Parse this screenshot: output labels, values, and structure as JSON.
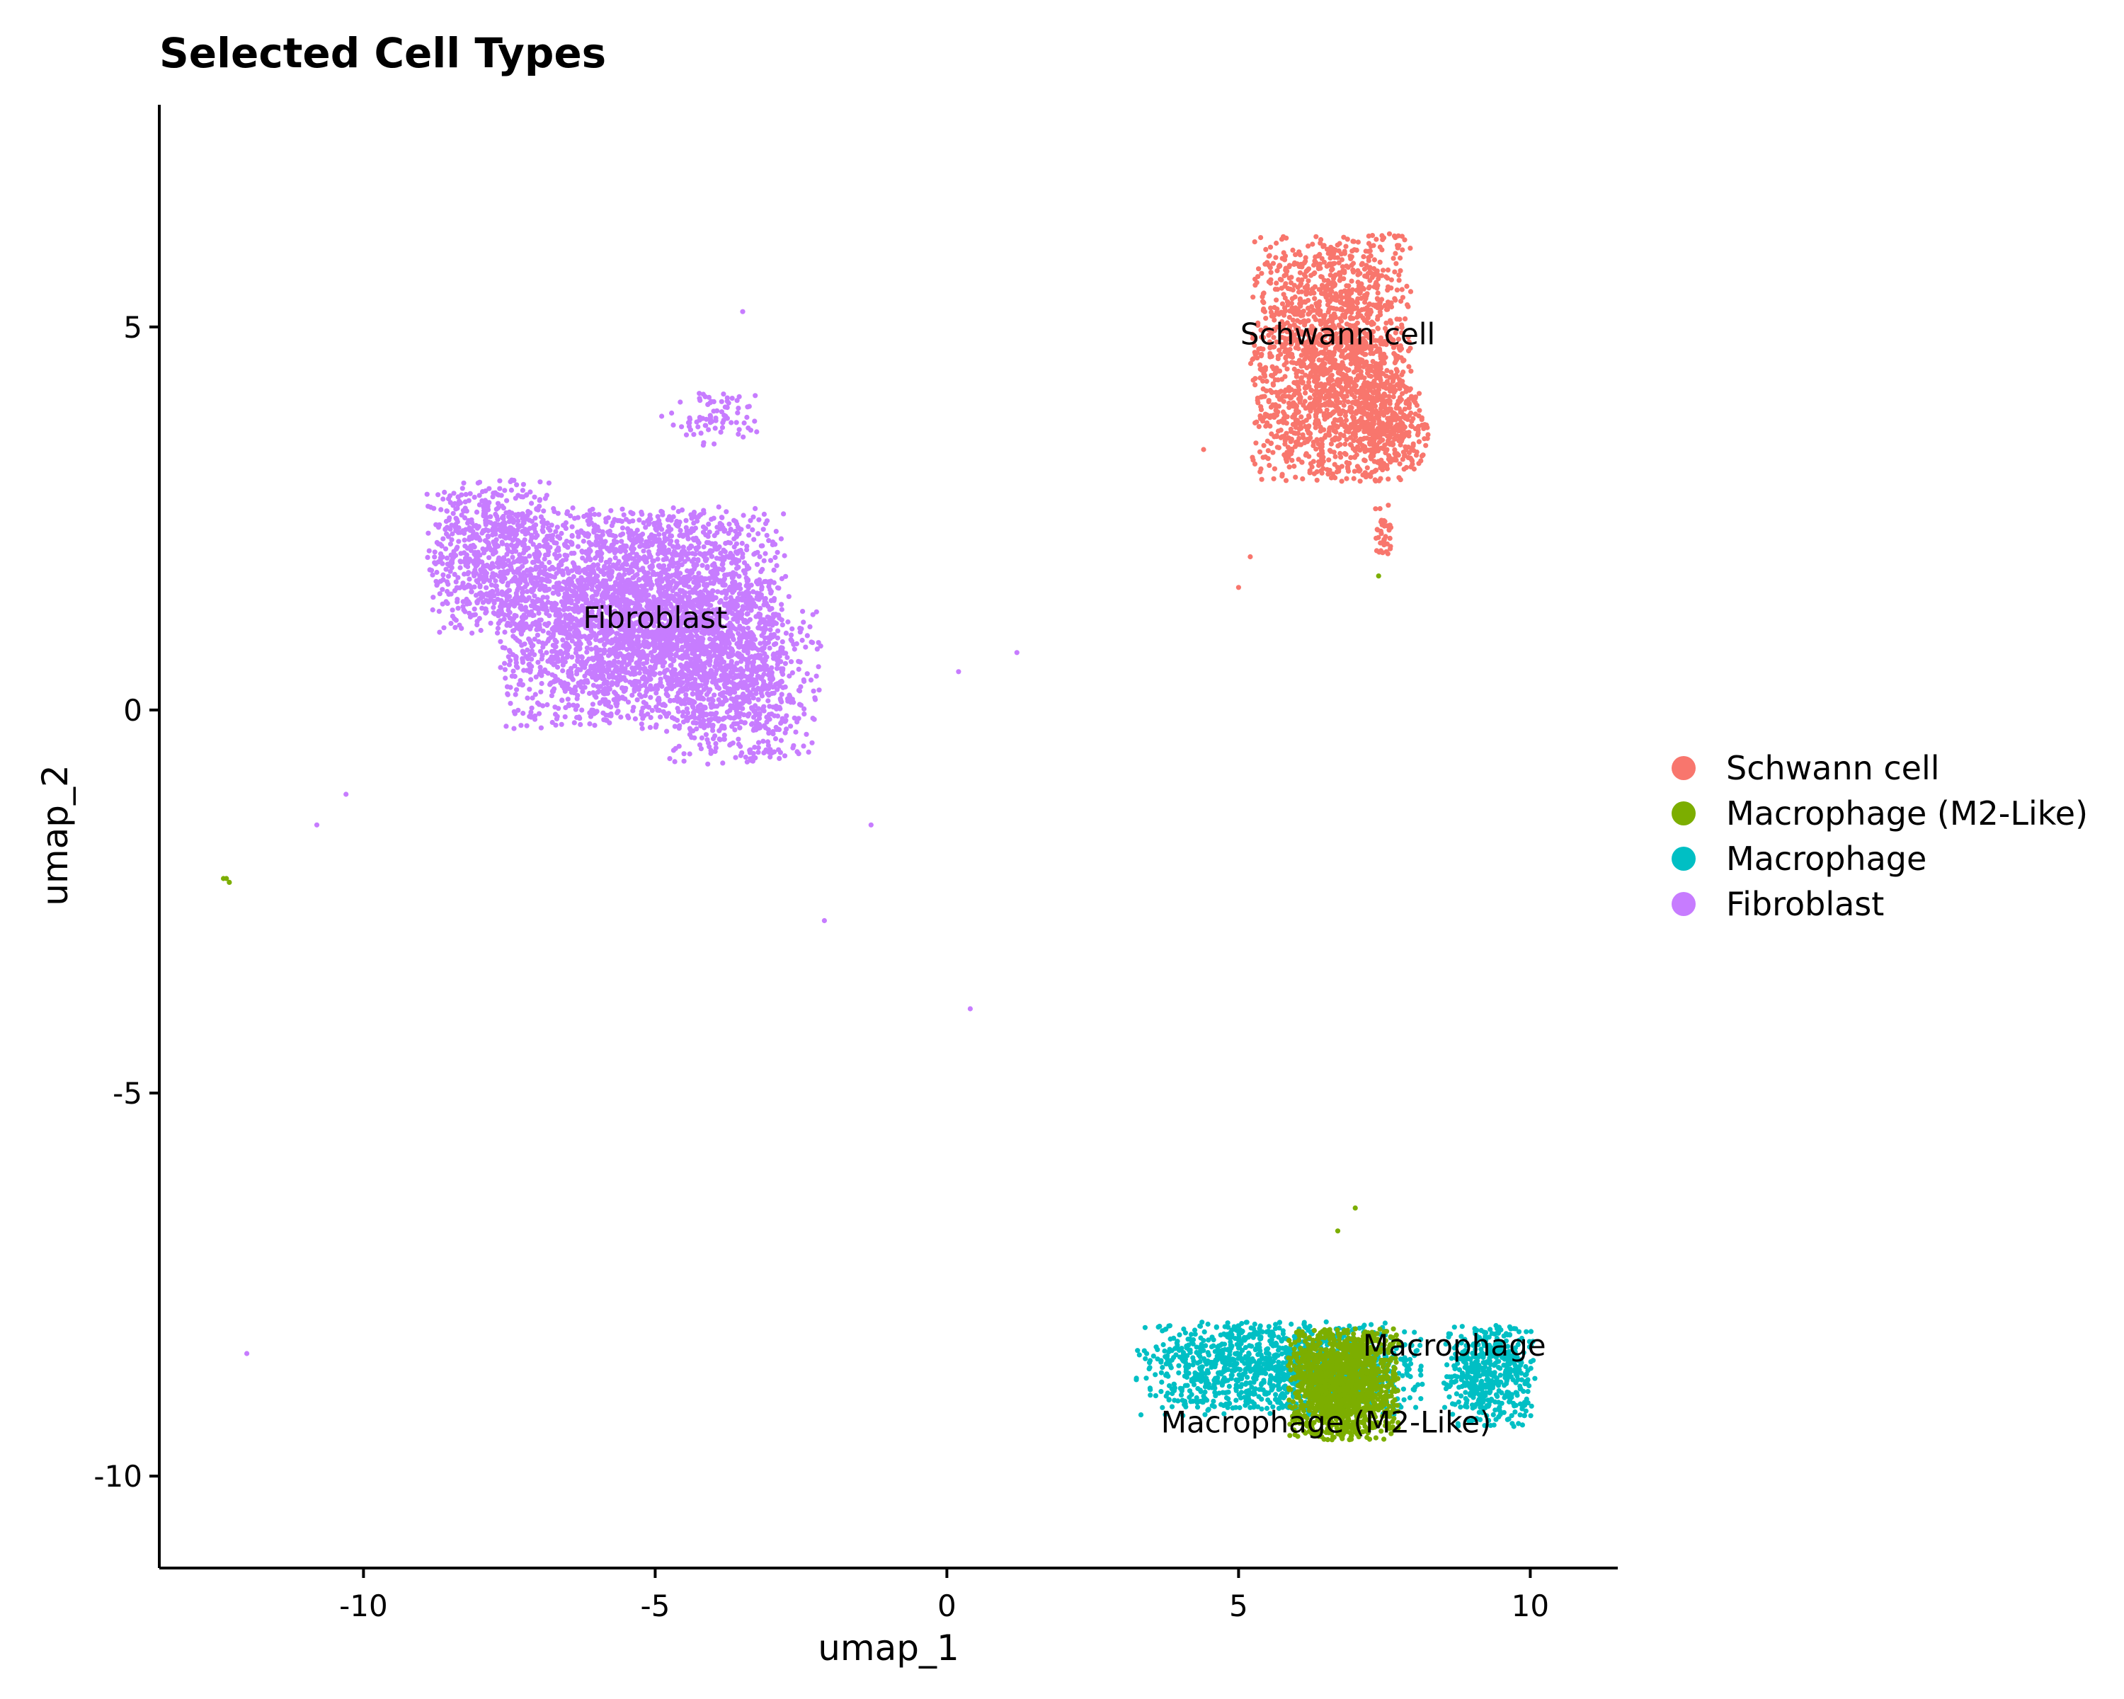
{
  "chart_data": {
    "type": "scatter",
    "title": "Selected Cell Types",
    "xlabel": "umap_1",
    "ylabel": "umap_2",
    "xlim": [
      -13.5,
      11.5
    ],
    "ylim": [
      -11.2,
      7.9
    ],
    "xticks": [
      -10,
      -5,
      0,
      5,
      10
    ],
    "yticks": [
      5,
      0,
      -5,
      -10
    ],
    "xtick_labels": [
      "-10",
      "-5",
      "0",
      "5",
      "10"
    ],
    "ytick_labels": [
      "5",
      "0",
      "-5",
      "-10"
    ],
    "grid": false,
    "legend_position": "right",
    "series": [
      {
        "name": "Schwann cell",
        "color": "#F8766D",
        "label": "Schwann cell",
        "label_at": [
          6.7,
          4.9
        ]
      },
      {
        "name": "Macrophage (M2-Like)",
        "color": "#7CAE00",
        "label": "Macrophage (M2-Like)",
        "label_at": [
          6.5,
          -9.3
        ]
      },
      {
        "name": "Macrophage",
        "color": "#00BFC4",
        "label": "Macrophage",
        "label_at": [
          8.7,
          -8.3
        ]
      },
      {
        "name": "Fibroblast",
        "color": "#C77CFF",
        "label": "Fibroblast",
        "label_at": [
          -5.0,
          1.2
        ]
      }
    ],
    "clusters": [
      {
        "series": 0,
        "center": [
          6.6,
          4.6
        ],
        "spread": [
          1.25,
          1.45
        ],
        "n": 1900
      },
      {
        "series": 0,
        "center": [
          7.6,
          3.7
        ],
        "spread": [
          0.6,
          0.5
        ],
        "n": 300
      },
      {
        "series": 0,
        "center": [
          7.5,
          2.3
        ],
        "spread": [
          0.15,
          0.4
        ],
        "n": 40
      },
      {
        "series": 3,
        "center": [
          -5.2,
          1.2
        ],
        "spread": [
          2.2,
          1.3
        ],
        "n": 3400
      },
      {
        "series": 3,
        "center": [
          -7.8,
          2.0
        ],
        "spread": [
          1.0,
          0.9
        ],
        "n": 700
      },
      {
        "series": 3,
        "center": [
          -3.5,
          0.4
        ],
        "spread": [
          1.2,
          1.0
        ],
        "n": 700
      },
      {
        "series": 3,
        "center": [
          -4.0,
          3.8
        ],
        "spread": [
          0.8,
          0.35
        ],
        "n": 80
      },
      {
        "series": 2,
        "center": [
          5.7,
          -8.6
        ],
        "spread": [
          2.2,
          0.55
        ],
        "n": 1300
      },
      {
        "series": 2,
        "center": [
          9.3,
          -8.7
        ],
        "spread": [
          0.7,
          0.6
        ],
        "n": 500
      },
      {
        "series": 1,
        "center": [
          6.8,
          -8.8
        ],
        "spread": [
          0.85,
          0.65
        ],
        "n": 1500
      }
    ],
    "outliers": [
      {
        "series": 3,
        "points": [
          [
            -3.5,
            5.2
          ],
          [
            -12.0,
            -8.4
          ],
          [
            0.4,
            -3.9
          ],
          [
            1.2,
            0.75
          ],
          [
            -10.3,
            -1.1
          ],
          [
            -10.8,
            -1.5
          ],
          [
            -2.1,
            -2.75
          ],
          [
            -1.3,
            -1.5
          ],
          [
            0.2,
            0.5
          ]
        ]
      },
      {
        "series": 1,
        "points": [
          [
            -12.4,
            -2.2
          ],
          [
            -12.3,
            -2.25
          ],
          [
            -12.35,
            -2.2
          ],
          [
            7.4,
            1.75
          ],
          [
            7.0,
            -6.5
          ],
          [
            6.7,
            -6.8
          ]
        ]
      },
      {
        "series": 0,
        "points": [
          [
            5.0,
            1.6
          ],
          [
            5.2,
            2.0
          ],
          [
            4.4,
            3.4
          ]
        ]
      }
    ]
  },
  "legend": {
    "items": [
      {
        "label": "Schwann cell",
        "color": "#F8766D"
      },
      {
        "label": "Macrophage (M2-Like)",
        "color": "#7CAE00"
      },
      {
        "label": "Macrophage",
        "color": "#00BFC4"
      },
      {
        "label": "Fibroblast",
        "color": "#C77CFF"
      }
    ]
  }
}
